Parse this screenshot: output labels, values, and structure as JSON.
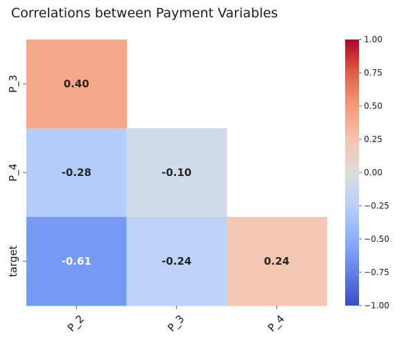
{
  "chart_data": {
    "type": "heatmap",
    "title": "Correlations between Payment Variables",
    "x_labels": [
      "P_2",
      "P_3",
      "P_4"
    ],
    "y_labels": [
      "P_3",
      "P_4",
      "target"
    ],
    "values": [
      [
        0.4,
        null,
        null
      ],
      [
        -0.28,
        -0.1,
        null
      ],
      [
        -0.61,
        -0.24,
        0.24
      ]
    ],
    "value_labels": [
      [
        "0.40",
        null,
        null
      ],
      [
        "-0.28",
        "-0.10",
        null
      ],
      [
        "-0.61",
        "-0.24",
        "0.24"
      ]
    ],
    "mask": "upper-triangle",
    "colormap": "coolwarm",
    "vmin": -1.0,
    "vmax": 1.0,
    "colorbar": {
      "position": "right",
      "ticks": [
        1.0,
        0.75,
        0.5,
        0.25,
        0.0,
        -0.25,
        -0.5,
        -0.75,
        -1.0
      ],
      "tick_labels": [
        "1.00",
        "0.75",
        "0.50",
        "0.25",
        "0.00",
        "−0.25",
        "−0.50",
        "−0.75",
        "−1.00"
      ]
    },
    "cell_colors": [
      [
        "#f6a98a",
        null,
        null
      ],
      [
        "#b5cdfa",
        "#d1dae9",
        null
      ],
      [
        "#7699f4",
        "#bcd2f7",
        "#f3c7b1"
      ]
    ],
    "text_colors": [
      [
        "#262626",
        null,
        null
      ],
      [
        "#262626",
        "#262626",
        null
      ],
      [
        "#ffffff",
        "#262626",
        "#262626"
      ]
    ],
    "colorbar_stops": [
      "#3b4cc0",
      "#6282ea",
      "#8db0fe",
      "#b8d0f9",
      "#dddcdc",
      "#f4c4ae",
      "#f49a7b",
      "#de6046",
      "#b40426"
    ]
  }
}
